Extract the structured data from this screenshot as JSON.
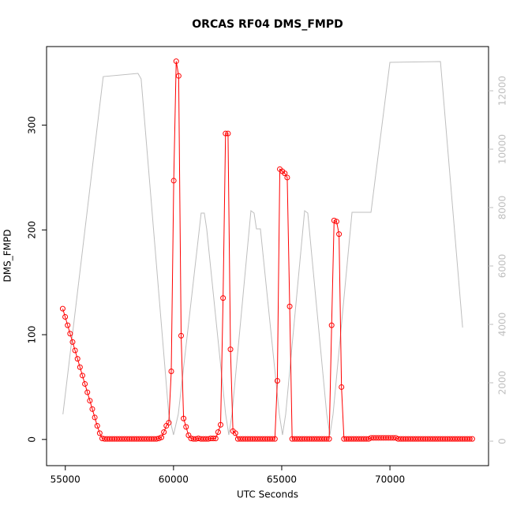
{
  "chart_data": {
    "type": "line",
    "title": "ORCAS RF04 DMS_FMPD",
    "x_label": "UTC Seconds",
    "y_label": "DMS_FMPD",
    "xlim": [
      54134,
      74556
    ],
    "xticks": [
      55000,
      60000,
      65000,
      70000
    ],
    "ylim": [
      -25,
      375
    ],
    "yticks": [
      0,
      100,
      200,
      300
    ],
    "y2lim": [
      -838,
      13514
    ],
    "y2ticks": [
      0,
      2000,
      4000,
      6000,
      8000,
      10000,
      12000
    ],
    "y2_color": "#bebebe",
    "series": [
      {
        "color": "#ff0000",
        "markers": true,
        "x": [
          54880,
          54994,
          55108,
          55222,
          55336,
          55450,
          55564,
          55678,
          55792,
          55906,
          56020,
          56134,
          56248,
          56362,
          56476,
          56590,
          56704,
          56818,
          56932,
          57046,
          57160,
          57274,
          57388,
          57502,
          57616,
          57730,
          57844,
          57958,
          58072,
          58186,
          58300,
          58414,
          58528,
          58642,
          58756,
          58870,
          58984,
          59098,
          59212,
          59326,
          59440,
          59554,
          59668,
          59782,
          59896,
          60010,
          60124,
          60238,
          60352,
          60466,
          60580,
          60694,
          60808,
          60922,
          61036,
          61150,
          61264,
          61378,
          61492,
          61606,
          61720,
          61834,
          61948,
          62062,
          62176,
          62290,
          62404,
          62518,
          62632,
          62746,
          62860,
          62974,
          63088,
          63202,
          63316,
          63430,
          63544,
          63658,
          63772,
          63886,
          64000,
          64114,
          64228,
          64342,
          64456,
          64570,
          64684,
          64798,
          64912,
          65026,
          65140,
          65254,
          65368,
          65482,
          65596,
          65710,
          65824,
          65938,
          66052,
          66166,
          66280,
          66394,
          66508,
          66622,
          66736,
          66850,
          66964,
          67078,
          67192,
          67306,
          67420,
          67534,
          67648,
          67762,
          67876,
          67990,
          68104,
          68218,
          68332,
          68446,
          68560,
          68674,
          68788,
          68902,
          69016,
          69130,
          69244,
          69358,
          69472,
          69586,
          69700,
          69814,
          69928,
          70042,
          70156,
          70270,
          70384,
          70498,
          70612,
          70726,
          70840,
          70954,
          71068,
          71182,
          71296,
          71410,
          71524,
          71638,
          71752,
          71866,
          71980,
          72094,
          72208,
          72322,
          72436,
          72550,
          72664,
          72778,
          72892,
          73006,
          73120,
          73234,
          73348,
          73462,
          73576,
          73690,
          73804
        ],
        "values": [
          124.8,
          117,
          109,
          101,
          93,
          85,
          77,
          69,
          61,
          53,
          45,
          37,
          29,
          21,
          13,
          6,
          1,
          0.5,
          0.5,
          0.5,
          0.5,
          0.5,
          0.5,
          0.5,
          0.5,
          0.5,
          0.5,
          0.5,
          0.5,
          0.5,
          0.5,
          0.5,
          0.5,
          0.5,
          0.5,
          0.5,
          0.5,
          0.5,
          0.5,
          1,
          2,
          7,
          13,
          16,
          65,
          247,
          361,
          347,
          99,
          20,
          12,
          4,
          1,
          0.5,
          0.5,
          1,
          0.5,
          0.5,
          0.5,
          0.5,
          1,
          1,
          1,
          7,
          14,
          135,
          292,
          292,
          86,
          8,
          6,
          0.5,
          0.5,
          0.5,
          0.5,
          0.5,
          0.5,
          0.5,
          0.5,
          0.5,
          0.5,
          0.5,
          0.5,
          0.5,
          0.5,
          0.5,
          0.5,
          56,
          258,
          256,
          254,
          250,
          127,
          0.5,
          0.5,
          0.5,
          0.5,
          0.5,
          0.5,
          0.5,
          0.5,
          0.5,
          0.5,
          0.5,
          0.5,
          0.5,
          0.5,
          0.5,
          0.5,
          109,
          209,
          208,
          196,
          50,
          0.5,
          0.5,
          0.5,
          0.5,
          0.5,
          0.5,
          0.5,
          0.5,
          0.5,
          0.5,
          0.5,
          1.5,
          1.5,
          1.5,
          1.5,
          1.5,
          1.5,
          1.5,
          1.5,
          1.5,
          1.5,
          1.5,
          0.5,
          0.5,
          0.5,
          0.5,
          0.5,
          0.5,
          0.5,
          0.5,
          0.5,
          0.5,
          0.5,
          0.5,
          0.5,
          0.5,
          0.5,
          0.5,
          0.5,
          0.5,
          0.5,
          0.5,
          0.5,
          0.5,
          0.5,
          0.5,
          0.5,
          0.5,
          0.5,
          0.5,
          0.5,
          0.5,
          0.5
        ]
      },
      {
        "color": "#bebebe",
        "axis": "y2",
        "markers": false,
        "x": [
          54890,
          56752,
          58358,
          58504,
          59781,
          60000,
          60219,
          61277,
          61423,
          61533,
          62409,
          62555,
          62701,
          63577,
          63723,
          63832,
          64015,
          64890,
          65036,
          65182,
          66058,
          66204,
          67080,
          67226,
          67372,
          68248,
          69124,
          69999,
          72335,
          73358
        ],
        "values": [
          919,
          12486,
          12595,
          12405,
          919,
          216,
          919,
          7811,
          7811,
          7270,
          919,
          216,
          919,
          7892,
          7811,
          7270,
          7270,
          919,
          216,
          919,
          7892,
          7811,
          919,
          216,
          919,
          7838,
          7838,
          12973,
          13000,
          3892
        ]
      }
    ]
  }
}
